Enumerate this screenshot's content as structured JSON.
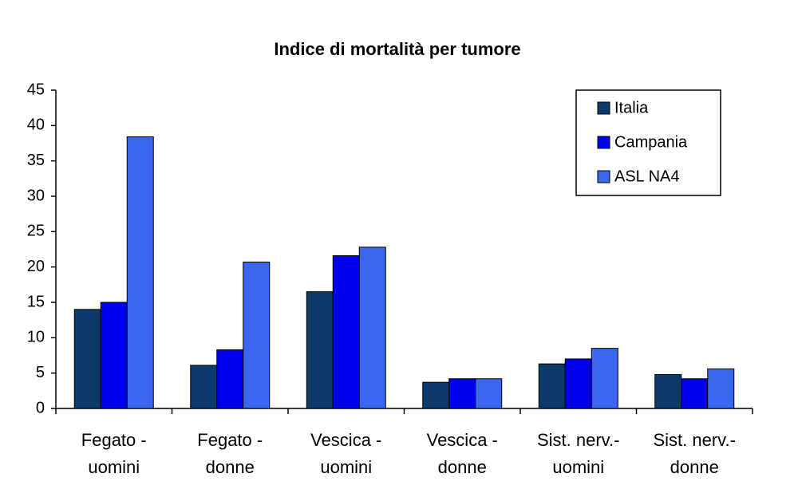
{
  "chart_data": {
    "type": "bar",
    "title": "Indice di mortalità per tumore",
    "categories": [
      "Fegato - uomini",
      "Fegato - donne",
      "Vescica - uomini",
      "Vescica - donne",
      "Sist. nerv.- uomini",
      "Sist. nerv.- donne"
    ],
    "series": [
      {
        "name": "Italia",
        "color": "#0b3a6b",
        "values": [
          14.0,
          6.1,
          16.5,
          3.7,
          6.3,
          4.8
        ]
      },
      {
        "name": "Campania",
        "color": "#0000ee",
        "values": [
          15.0,
          8.3,
          21.6,
          4.2,
          7.0,
          4.2
        ]
      },
      {
        "name": "ASL NA4",
        "color": "#3a66f0",
        "values": [
          38.4,
          20.7,
          22.8,
          4.2,
          8.5,
          5.6
        ]
      }
    ],
    "ylim": [
      0,
      45
    ],
    "yticks": [
      0,
      5,
      10,
      15,
      20,
      25,
      30,
      35,
      40,
      45
    ],
    "grid": false,
    "legend": "top-right"
  }
}
